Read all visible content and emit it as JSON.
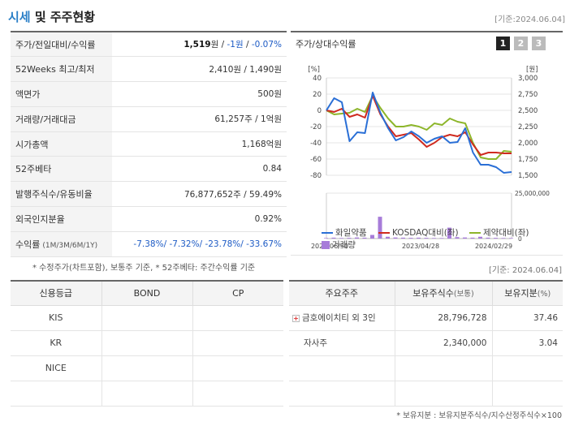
{
  "header": {
    "title_accent": "시세",
    "title_rest": " 및 주주현황",
    "date": "[기준:2024.06.04]"
  },
  "info_rows": [
    {
      "label": "주가/전일대비/수익률",
      "value": "1,519원 / -1원 / -0.07%"
    },
    {
      "label": "52Weeks 최고/최저",
      "value": "2,410원 / 1,490원"
    },
    {
      "label": "액면가",
      "value": "500원"
    },
    {
      "label": "거래량/거래대금",
      "value": "61,257주 / 1억원"
    },
    {
      "label": "시가총액",
      "value": "1,168억원"
    },
    {
      "label": "52주베타",
      "value": "0.84"
    },
    {
      "label": "발행주식수/유동비율",
      "value": "76,877,652주 / 59.49%"
    },
    {
      "label": "외국인지분율",
      "value": "0.92%"
    },
    {
      "label": "수익률",
      "label_small": "(1M/3M/6M/1Y)",
      "value": "-7.38%/ -7.32%/ -23.78%/ -33.67%"
    }
  ],
  "price_line": {
    "price": "1,519",
    "unit": "원",
    "sep": " / ",
    "change": "-1원",
    "rate": "-0.07%"
  },
  "note1": "* 수정주가(차트포함), 보통주 기준, * 52주베타: 주간수익률 기준",
  "chart": {
    "title": "주가/상대수익률",
    "pages": [
      "1",
      "2",
      "3"
    ],
    "active_page": 0,
    "colors": {
      "stock": "#2a6fd6",
      "kosdaq": "#cf2a1f",
      "pharma": "#8db62b",
      "volume": "#a77cd9",
      "grid": "#e6e6e6"
    },
    "legend": {
      "stock": "화일약품",
      "kosdaq": "KOSDAQ대비(좌)",
      "pharma": "제약대비(좌)",
      "volume": "거래량"
    }
  },
  "chart_data": {
    "type": "line",
    "title": "",
    "left_axis": {
      "unit": "[%]",
      "ticks": [
        "40",
        "20",
        "0",
        "-20",
        "-40",
        "-60",
        "-80"
      ],
      "ylim": [
        -80,
        40
      ]
    },
    "right_axis": {
      "unit": "[원]",
      "ticks": [
        "3,000",
        "2,750",
        "2,500",
        "2,250",
        "2,000",
        "1,750",
        "1,500"
      ],
      "ylim": [
        1500,
        3000
      ]
    },
    "volume_axis": {
      "ticks": [
        "25,000,000",
        "0"
      ],
      "ylim": [
        0,
        25000000
      ]
    },
    "x_labels": [
      "2022/06/30",
      "2023/04/28",
      "2024/02/29"
    ],
    "series": [
      {
        "name": "화일약품",
        "values": [
          0,
          15,
          10,
          -38,
          -27,
          -28,
          22,
          -3,
          -22,
          -37,
          -33,
          -26,
          -32,
          -40,
          -35,
          -32,
          -40,
          -39,
          -22,
          -52,
          -67,
          -67,
          -70,
          -77,
          -76
        ]
      },
      {
        "name": "KOSDAQ대비(좌)",
        "values": [
          0,
          -2,
          2,
          -8,
          -5,
          -9,
          18,
          -5,
          -20,
          -32,
          -30,
          -28,
          -36,
          -45,
          -40,
          -33,
          -30,
          -32,
          -27,
          -42,
          -55,
          -52,
          -52,
          -53,
          -53
        ]
      },
      {
        "name": "제약대비(좌)",
        "values": [
          0,
          -5,
          -4,
          -3,
          2,
          -2,
          18,
          3,
          -10,
          -20,
          -20,
          -18,
          -20,
          -24,
          -16,
          -18,
          -10,
          -14,
          -16,
          -40,
          -58,
          -60,
          -60,
          -50,
          -51
        ]
      }
    ],
    "volume": [
      0.3,
      0.5,
      0.3,
      0.4,
      0.6,
      0.5,
      2.0,
      12.0,
      1.0,
      0.6,
      0.5,
      0.4,
      0.5,
      0.4,
      0.3,
      0.3,
      6.0,
      0.8,
      0.6,
      0.5,
      1.0,
      0.5,
      0.4,
      0.3,
      0.3
    ]
  },
  "date2": "[기준: 2024.06.04]",
  "credit": {
    "headers": [
      "신용등급",
      "BOND",
      "CP"
    ],
    "rows": [
      [
        "KIS",
        "",
        ""
      ],
      [
        "KR",
        "",
        ""
      ],
      [
        "NICE",
        "",
        ""
      ],
      [
        "",
        "",
        ""
      ]
    ]
  },
  "holders": {
    "headers": [
      "주요주주",
      "보유주식수",
      "(보통)",
      "보유지분",
      "(%)"
    ],
    "rows": [
      {
        "name": "금호에이치티 외 3인",
        "shares": "28,796,728",
        "pct": "37.46",
        "expandable": true
      },
      {
        "name": "자사주",
        "shares": "2,340,000",
        "pct": "3.04",
        "expandable": false
      },
      {
        "name": "",
        "shares": "",
        "pct": "",
        "expandable": false
      },
      {
        "name": "",
        "shares": "",
        "pct": "",
        "expandable": false
      }
    ]
  },
  "note2": "* 보유지분 : 보유지분주식수/지수산정주식수×100"
}
